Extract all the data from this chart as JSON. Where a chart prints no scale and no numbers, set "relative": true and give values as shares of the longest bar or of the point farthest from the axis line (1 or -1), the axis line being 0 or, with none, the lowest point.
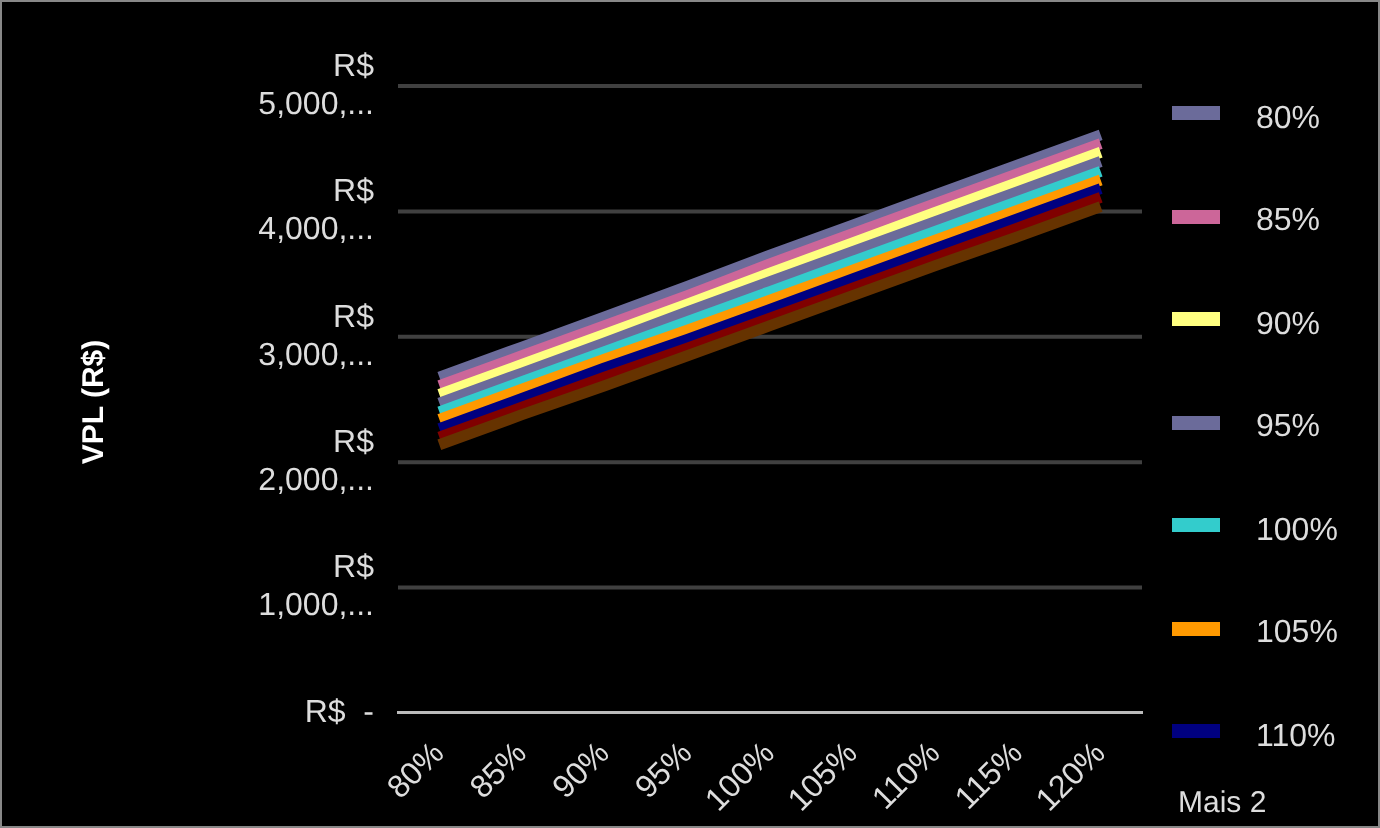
{
  "chart_data": {
    "type": "line",
    "relative": true,
    "categories": [
      "80%",
      "85%",
      "90%",
      "95%",
      "100%",
      "105%",
      "110%",
      "115%",
      "120%"
    ],
    "series": [
      {
        "name": "80%",
        "color": "#6b6b9a",
        "values": [
          0.581,
          0.633,
          0.685,
          0.738,
          0.792,
          0.844,
          0.896,
          0.948,
          1
        ]
      },
      {
        "name": "85%",
        "color": "#cc6699",
        "values": [
          0.566,
          0.618,
          0.67,
          0.722,
          0.777,
          0.829,
          0.881,
          0.933,
          0.985
        ]
      },
      {
        "name": "90%",
        "color": "#ffff80",
        "values": [
          0.551,
          0.603,
          0.655,
          0.707,
          0.761,
          0.813,
          0.866,
          0.918,
          0.97
        ]
      },
      {
        "name": "95%",
        "color": "#6b6b9a",
        "values": [
          0.536,
          0.588,
          0.64,
          0.694,
          0.746,
          0.798,
          0.85,
          0.902,
          0.954
        ]
      },
      {
        "name": "100%",
        "color": "#33cccc",
        "values": [
          0.521,
          0.573,
          0.625,
          0.677,
          0.729,
          0.781,
          0.833,
          0.885,
          0.937
        ]
      },
      {
        "name": "105%",
        "color": "#ff9900",
        "values": [
          0.508,
          0.56,
          0.612,
          0.662,
          0.714,
          0.766,
          0.818,
          0.87,
          0.922
        ]
      },
      {
        "name": "110%",
        "color": "#000080",
        "values": [
          0.492,
          0.544,
          0.597,
          0.646,
          0.698,
          0.751,
          0.803,
          0.855,
          0.907
        ]
      },
      {
        "color": "#800000",
        "values": [
          0.477,
          0.529,
          0.581,
          0.631,
          0.683,
          0.735,
          0.787,
          0.839,
          0.892
        ]
      },
      {
        "color": "#663300",
        "values": [
          0.464,
          0.516,
          0.566,
          0.618,
          0.67,
          0.722,
          0.774,
          0.824,
          0.876
        ]
      }
    ],
    "grid": "y",
    "legend": "right",
    "marker": "none",
    "line_style": "solid",
    "annotations": [
      "VPL (R$)",
      "R$  -",
      "R$\n1,000,...",
      "R$\n2,000,...",
      "R$\n3,000,...",
      "R$\n4,000,...",
      "R$\n5,000,...",
      "Mais 2"
    ]
  }
}
